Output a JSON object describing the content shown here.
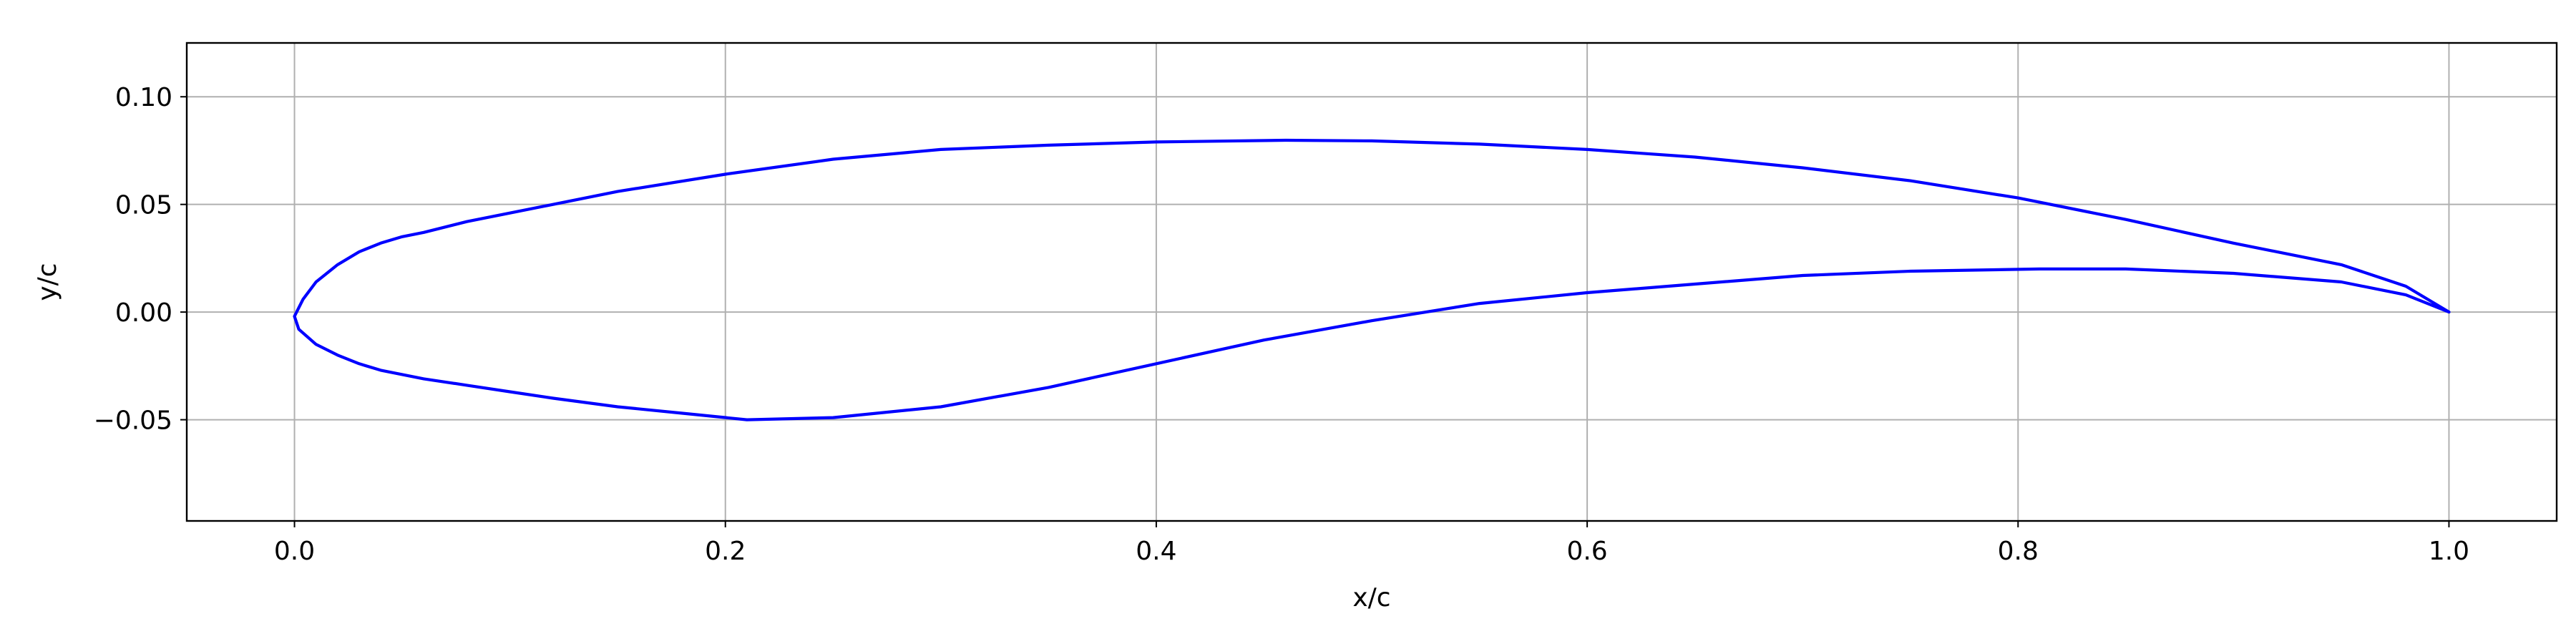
{
  "chart_data": {
    "type": "line",
    "title": "",
    "xlabel": "x/c",
    "ylabel": "y/c",
    "xlim": [
      -0.05,
      1.05
    ],
    "ylim": [
      -0.097,
      0.125
    ],
    "grid": true,
    "legend": "none",
    "x_ticks": [
      {
        "value": 0.0,
        "label": "0.0"
      },
      {
        "value": 0.2,
        "label": "0.2"
      },
      {
        "value": 0.4,
        "label": "0.4"
      },
      {
        "value": 0.6,
        "label": "0.6"
      },
      {
        "value": 0.8,
        "label": "0.8"
      },
      {
        "value": 1.0,
        "label": "1.0"
      }
    ],
    "y_ticks": [
      {
        "value": 0.1,
        "label": "0.10"
      },
      {
        "value": 0.05,
        "label": "0.05"
      },
      {
        "value": 0.0,
        "label": "0.00"
      },
      {
        "value": -0.05,
        "label": "−0.05"
      }
    ],
    "series": [
      {
        "color": "#0000ff",
        "x": [
          1.0,
          0.98,
          0.95,
          0.9,
          0.85,
          0.8,
          0.75,
          0.7,
          0.65,
          0.6,
          0.55,
          0.5,
          0.46,
          0.4,
          0.35,
          0.3,
          0.25,
          0.2,
          0.15,
          0.12,
          0.1,
          0.08,
          0.06,
          0.05,
          0.04,
          0.03,
          0.02,
          0.01,
          0.004,
          0.0,
          0.002,
          0.01,
          0.02,
          0.03,
          0.04,
          0.05,
          0.06,
          0.08,
          0.1,
          0.12,
          0.15,
          0.18,
          0.21,
          0.25,
          0.3,
          0.35,
          0.4,
          0.45,
          0.5,
          0.55,
          0.6,
          0.65,
          0.7,
          0.75,
          0.81,
          0.85,
          0.9,
          0.95,
          0.98,
          1.0
        ],
        "y": [
          0.0,
          0.012,
          0.022,
          0.032,
          0.043,
          0.053,
          0.061,
          0.067,
          0.072,
          0.0755,
          0.078,
          0.0795,
          0.0798,
          0.079,
          0.0775,
          0.0755,
          0.071,
          0.064,
          0.056,
          0.05,
          0.046,
          0.042,
          0.037,
          0.035,
          0.032,
          0.028,
          0.022,
          0.014,
          0.006,
          -0.002,
          -0.008,
          -0.015,
          -0.02,
          -0.024,
          -0.027,
          -0.029,
          -0.031,
          -0.034,
          -0.037,
          -0.04,
          -0.044,
          -0.047,
          -0.05,
          -0.049,
          -0.044,
          -0.035,
          -0.024,
          -0.013,
          -0.004,
          0.004,
          0.009,
          0.013,
          0.017,
          0.019,
          0.02,
          0.02,
          0.018,
          0.014,
          0.008,
          0.0
        ]
      }
    ]
  }
}
